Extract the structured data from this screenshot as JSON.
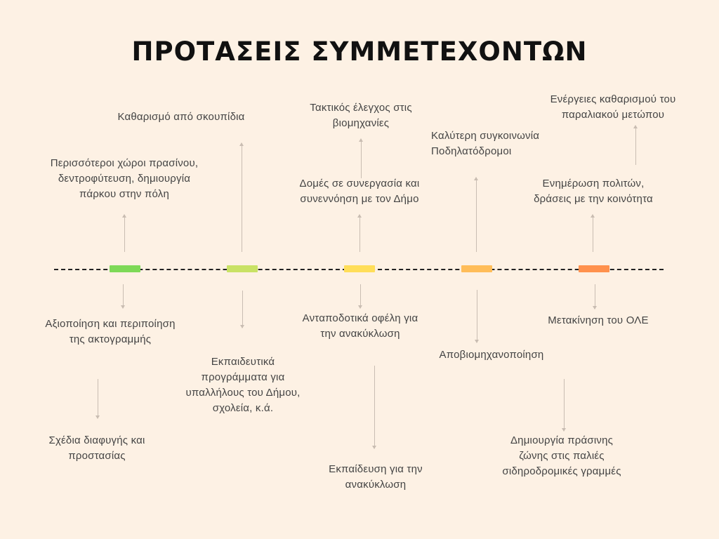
{
  "title": "ΠΡΟΤΑΣΕΙΣ ΣΥΜΜΕΤΕΧΟΝΤΩΝ",
  "colors": {
    "background": "#fdf1e4",
    "segment_1": "#7ed957",
    "segment_2": "#c9e265",
    "segment_3": "#ffde59",
    "segment_4": "#ffbd59",
    "segment_5": "#ff914d",
    "connector": "#c9bdb2"
  },
  "labels": {
    "up_1_near": "Περισσότεροι χώροι πρασίνου,\nδεντροφύτευση, δημιουργία\nπάρκου στην πόλη",
    "up_2_far": "Καθαρισμό από σκουπίδια",
    "up_3_near": "Δομές σε συνεργασία και\nσυνεννόηση με τον Δήμο",
    "up_3_far": "Τακτικός έλεγχος στις\nβιομηχανίες",
    "up_4_far": "Καλύτερη συγκοινωνία\nΠοδηλατόδρομοι",
    "up_5_near": "Ενημέρωση πολιτών,\nδράσεις με την κοινότητα",
    "up_5_far": "Ενέργειες καθαρισμού του\nπαραλιακού μετώπου",
    "down_1_near": "Αξιοποίηση και περιποίηση\nτης ακτογραμμής",
    "down_1_far": "Σχέδια διαφυγής και\nπροστασίας",
    "down_2_near": "Εκπαιδευτικά\nπρογράμματα για\nυπαλλήλους του Δήμου,\nσχολεία, κ.ά.",
    "down_3_near": "Ανταποδοτικά οφέλη για\nτην ανακύκλωση",
    "down_3_far": "Εκπαίδευση για την\nανακύκλωση",
    "down_4_near": "Αποβιομηχανοποίηση",
    "down_5_near": "Μετακίνηση του ΟΛΕ",
    "down_5_far": "Δημιουργία πράσινης\nζώνης στις παλιές\nσιδηροδρομικές γραμμές"
  }
}
